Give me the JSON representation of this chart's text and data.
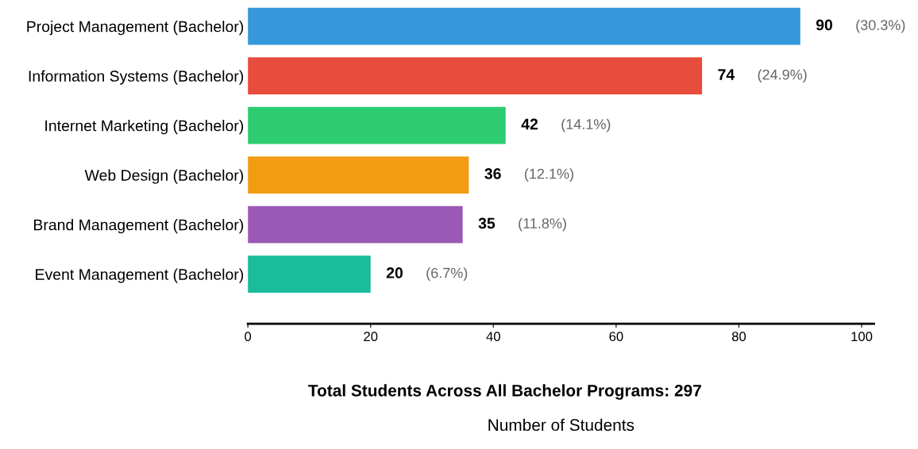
{
  "chart_data": {
    "type": "bar",
    "orientation": "horizontal",
    "xlabel": "Number of Students",
    "categories": [
      "Project Management (Bachelor)",
      "Information Systems (Bachelor)",
      "Internet Marketing (Bachelor)",
      "Web Design (Bachelor)",
      "Brand Management (Bachelor)",
      "Event Management (Bachelor)"
    ],
    "values": [
      90,
      74,
      42,
      36,
      35,
      20
    ],
    "colors": [
      "#3498db",
      "#e74c3c",
      "#2ecc71",
      "#f39c12",
      "#9b59b6",
      "#1abc9c"
    ],
    "xlim": [
      0,
      102
    ],
    "xticks": [
      0,
      20,
      40,
      60,
      80,
      100
    ],
    "data_labels": true,
    "grid": false,
    "legend": false,
    "annotations": [
      "(30.3%)",
      "(24.9%)",
      "(14.1%)",
      "(12.1%)",
      "(11.8%)",
      "(6.7%)",
      "Total Students Across All Bachelor Programs: 297"
    ]
  }
}
